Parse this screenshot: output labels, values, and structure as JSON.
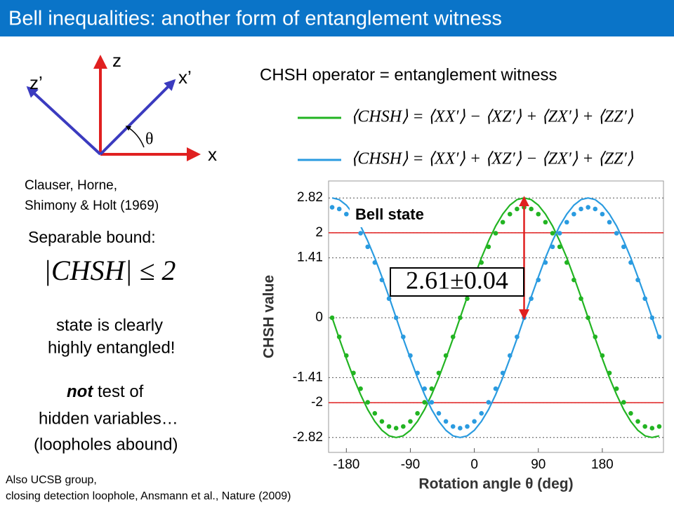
{
  "header": {
    "title": "Bell inequalities: another form of entanglement witness"
  },
  "diagram": {
    "z": "z",
    "x": "x",
    "z_prime": "z’",
    "x_prime": "x’",
    "theta": "θ"
  },
  "citation": [
    "Clauser, Horne,",
    "Shimony & Holt (1969)"
  ],
  "bound": {
    "label": "Separable bound:",
    "formula": "|CHSH| ≤ 2"
  },
  "conclusion": [
    "state is clearly",
    "highly entangled!"
  ],
  "caveat": {
    "emphasis": "not",
    "rest": " test of",
    "lines": [
      "hidden variables…",
      "(loopholes abound)"
    ]
  },
  "footnote": [
    "Also UCSB group,",
    "closing detection loophole, Ansmann et al., Nature (2009)"
  ],
  "witness_title": "CHSH operator = entanglement witness",
  "chart_data": {
    "type": "line",
    "x_label": "Rotation angle θ (deg)",
    "y_label": "CHSH value",
    "annotation": "Bell state",
    "result": "2.61±0.04",
    "arrow": {
      "x": 70,
      "y_from": 0,
      "y_to": 2.82,
      "color": "#e02020"
    },
    "reference_lines": [
      2,
      -2
    ],
    "reference_color": "#e02020",
    "xlim": [
      -205,
      266
    ],
    "ylim": [
      -3.17,
      3.22
    ],
    "xticks": [
      -180,
      -90,
      0,
      90,
      180
    ],
    "yticks": [
      2.82,
      2,
      1.41,
      0,
      -1.41,
      -2,
      -2.82
    ],
    "grid": true,
    "x": [
      -200,
      -190,
      -180,
      -170,
      -160,
      -150,
      -140,
      -130,
      -120,
      -110,
      -100,
      -90,
      -80,
      -70,
      -60,
      -50,
      -40,
      -30,
      -20,
      -10,
      0,
      10,
      20,
      30,
      40,
      50,
      60,
      70,
      80,
      90,
      100,
      110,
      120,
      130,
      140,
      150,
      160,
      170,
      180,
      190,
      200,
      210,
      220,
      230,
      240,
      250,
      260
    ],
    "series": [
      {
        "name": "⟨CHSH⟩ = ⟨XX′⟩ − ⟨XZ′⟩ + ⟨ZX′⟩ + ⟨ZZ′⟩",
        "color": "#22b422",
        "values": [
          0,
          -0.49,
          -0.96,
          -1.41,
          -1.81,
          -2.16,
          -2.44,
          -2.65,
          -2.78,
          -2.82,
          -2.78,
          -2.65,
          -2.44,
          -2.16,
          -1.81,
          -1.41,
          -0.96,
          -0.49,
          0,
          0.49,
          0.96,
          1.41,
          1.81,
          2.16,
          2.44,
          2.65,
          2.78,
          2.82,
          2.78,
          2.65,
          2.44,
          2.16,
          1.81,
          1.41,
          0.96,
          0.49,
          0,
          -0.49,
          -0.96,
          -1.41,
          -1.81,
          -2.16,
          -2.44,
          -2.65,
          -2.78,
          -2.82,
          -2.78
        ]
      },
      {
        "name": "⟨CHSH⟩ = ⟨XX′⟩ + ⟨XZ′⟩ − ⟨ZX′⟩ + ⟨ZZ′⟩",
        "color": "#2a9be0",
        "values": [
          2.82,
          2.78,
          2.65,
          2.44,
          2.16,
          1.81,
          1.41,
          0.96,
          0.49,
          0,
          -0.49,
          -0.96,
          -1.41,
          -1.81,
          -2.16,
          -2.44,
          -2.65,
          -2.78,
          -2.82,
          -2.78,
          -2.65,
          -2.44,
          -2.16,
          -1.81,
          -1.41,
          -0.96,
          -0.49,
          0,
          0.49,
          0.96,
          1.41,
          1.81,
          2.16,
          2.44,
          2.65,
          2.78,
          2.82,
          2.78,
          2.65,
          2.44,
          2.16,
          1.81,
          1.41,
          0.96,
          0.49,
          0,
          -0.49
        ]
      },
      {
        "color": "#22b422",
        "marker": "dot",
        "values": [
          0,
          -0.45,
          -0.89,
          -1.3,
          -1.67,
          -1.99,
          -2.25,
          -2.44,
          -2.56,
          -2.6,
          -2.56,
          -2.44,
          -2.25,
          -1.99,
          -1.67,
          -1.3,
          -0.89,
          -0.45,
          0,
          0.45,
          0.89,
          1.3,
          1.67,
          1.99,
          2.25,
          2.44,
          2.56,
          2.6,
          2.56,
          2.44,
          2.25,
          1.99,
          1.67,
          1.3,
          0.89,
          0.45,
          0,
          -0.45,
          -0.89,
          -1.3,
          -1.67,
          -1.99,
          -2.25,
          -2.44,
          -2.56,
          -2.6,
          -2.56
        ]
      },
      {
        "color": "#2a9be0",
        "marker": "dot",
        "values": [
          2.6,
          2.56,
          2.44,
          2.25,
          1.99,
          1.67,
          1.3,
          0.89,
          0.45,
          0,
          -0.45,
          -0.89,
          -1.3,
          -1.67,
          -1.99,
          -2.25,
          -2.44,
          -2.56,
          -2.6,
          -2.56,
          -2.44,
          -2.25,
          -1.99,
          -1.67,
          -1.3,
          -0.89,
          -0.45,
          0,
          0.45,
          0.89,
          1.3,
          1.67,
          1.99,
          2.25,
          2.44,
          2.56,
          2.6,
          2.56,
          2.44,
          2.25,
          1.99,
          1.67,
          1.3,
          0.89,
          0.45,
          0,
          -0.45
        ]
      }
    ]
  }
}
